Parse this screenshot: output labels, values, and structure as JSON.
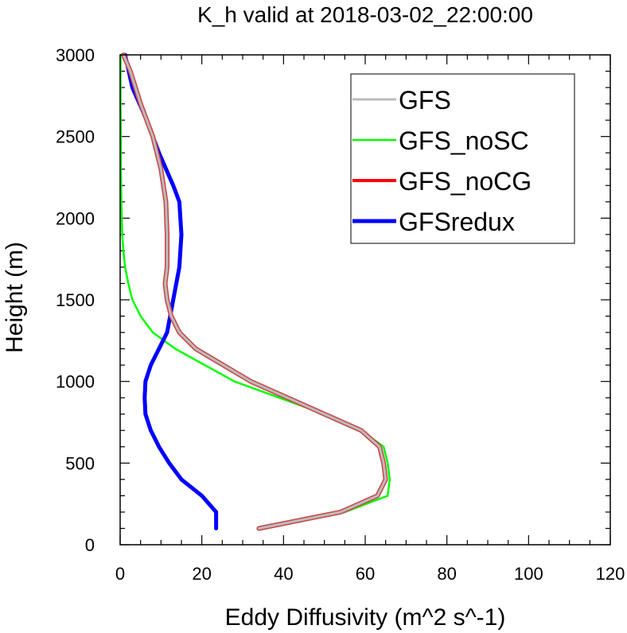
{
  "chart_data": {
    "type": "line",
    "title": "K_h valid at 2018-03-02_22:00:00",
    "xlabel": "Eddy Diffusivity (m^2 s^-1)",
    "ylabel": "Height (m)",
    "xlim": [
      0,
      120
    ],
    "ylim": [
      0,
      3000
    ],
    "xticks": [
      0,
      20,
      40,
      60,
      80,
      100,
      120
    ],
    "yticks": [
      0,
      500,
      1000,
      1500,
      2000,
      2500,
      3000
    ],
    "grid": false,
    "legend_position": "top-right",
    "series": [
      {
        "name": "GFS",
        "color": "#bbbbbb",
        "x": [
          34,
          54,
          63,
          65,
          64.5,
          63.5,
          59,
          50,
          32,
          18.5,
          14.5,
          12.5,
          11.5,
          11,
          11.5,
          11.5,
          11.2,
          10,
          8,
          5,
          2.5,
          0.8
        ],
        "y": [
          100,
          200,
          300,
          400,
          500,
          600,
          700,
          800,
          1000,
          1200,
          1300,
          1400,
          1500,
          1600,
          1700,
          1900,
          2100,
          2300,
          2500,
          2700,
          2900,
          3000
        ]
      },
      {
        "name": "GFS_noSC",
        "color": "#00ff00",
        "x": [
          34,
          55,
          65.5,
          66,
          65.5,
          64.5,
          59,
          50,
          28,
          13.5,
          8,
          5,
          3,
          2,
          1.2,
          0.8,
          0.5,
          0.3,
          0.2,
          0.2,
          0.1,
          0.1
        ],
        "y": [
          100,
          200,
          300,
          400,
          500,
          600,
          700,
          800,
          1000,
          1200,
          1300,
          1400,
          1500,
          1600,
          1700,
          1800,
          1900,
          2100,
          2300,
          2500,
          2700,
          3000
        ]
      },
      {
        "name": "GFS_noCG",
        "color": "#ff0000",
        "x": [
          34,
          54,
          63,
          65,
          64.5,
          63.5,
          59,
          50,
          32,
          18.5,
          14.5,
          12.5,
          11.5,
          11,
          11.5,
          11.5,
          11.2,
          10,
          8,
          5,
          2.5,
          0.8
        ],
        "y": [
          100,
          200,
          300,
          400,
          500,
          600,
          700,
          800,
          1000,
          1200,
          1300,
          1400,
          1500,
          1600,
          1700,
          1900,
          2100,
          2300,
          2500,
          2700,
          2900,
          3000
        ]
      },
      {
        "name": "GFSredux",
        "color": "#0000ff",
        "x": [
          23.5,
          23.5,
          20,
          15,
          12,
          9.5,
          7.5,
          6.2,
          6,
          6.2,
          7.5,
          9.5,
          11.5,
          13,
          14.5,
          15,
          14.5,
          13,
          9.5,
          6.5,
          3,
          1.2
        ],
        "y": [
          100,
          200,
          300,
          400,
          500,
          600,
          700,
          800,
          900,
          1000,
          1100,
          1200,
          1300,
          1500,
          1700,
          1900,
          2100,
          2200,
          2400,
          2600,
          2800,
          3000
        ]
      }
    ]
  }
}
